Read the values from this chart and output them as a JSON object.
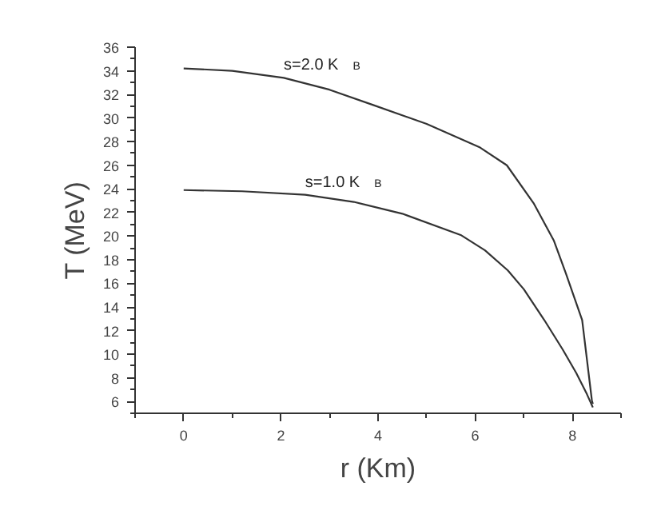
{
  "chart_data": {
    "type": "line",
    "xlabel": "r (Km)",
    "ylabel": "T (MeV)",
    "xlim": [
      -1,
      9
    ],
    "xticks": [
      0,
      2,
      4,
      6,
      8
    ],
    "ylim": [
      5,
      36
    ],
    "yticks": [
      6,
      8,
      10,
      12,
      14,
      16,
      18,
      20,
      22,
      24,
      26,
      28,
      30,
      32,
      34,
      36
    ],
    "grid": false,
    "marker": "none",
    "line_style": "solid",
    "series": [
      {
        "color": "#333333",
        "x": [
          0,
          1,
          2.06,
          3,
          3.9,
          5,
          6.1,
          6.65,
          7.2,
          7.62,
          7.86,
          8.2,
          8.4,
          8.42
        ],
        "values": [
          34.2,
          34.0,
          33.4,
          32.4,
          31.1,
          29.5,
          27.5,
          26.0,
          22.8,
          19.6,
          16.9,
          12.9,
          6.1,
          5.8
        ]
      },
      {
        "color": "#333333",
        "x": [
          0,
          1.2,
          2.5,
          3.5,
          4.5,
          5.7,
          6.2,
          6.67,
          7.0,
          7.42,
          7.8,
          8.08,
          8.3,
          8.42
        ],
        "values": [
          23.9,
          23.8,
          23.5,
          22.9,
          21.9,
          20.1,
          18.8,
          17.1,
          15.5,
          12.9,
          10.4,
          8.4,
          6.6,
          5.5
        ]
      }
    ],
    "annotations": [
      "s=2.0 K$_{B}$",
      "s=1.0 K$_{B}$"
    ]
  }
}
